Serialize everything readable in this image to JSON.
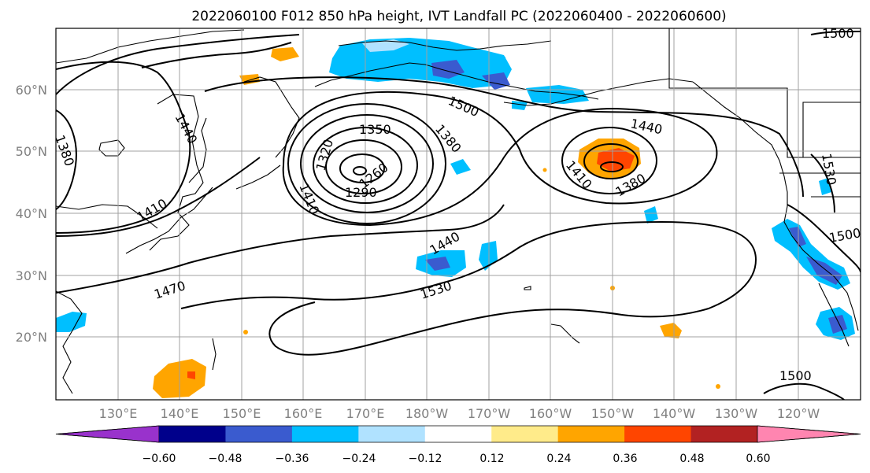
{
  "title": "2022060100 F012 850 hPa height, IVT Landfall PC (2022060400 - 2022060600)",
  "map": {
    "lat_labels": [
      "60°N",
      "50°N",
      "40°N",
      "30°N",
      "20°N"
    ],
    "lon_labels": [
      "130°E",
      "140°E",
      "150°E",
      "160°E",
      "170°E",
      "180°W",
      "170°W",
      "160°W",
      "150°W",
      "140°W",
      "130°W",
      "120°W"
    ],
    "contour_labels": [
      {
        "text": "1440",
        "name": "contour-label-1440-nw"
      },
      {
        "text": "1380",
        "name": "contour-label-1380-west"
      },
      {
        "text": "1410",
        "name": "contour-label-1410-japan"
      },
      {
        "text": "1470",
        "name": "contour-label-1470"
      },
      {
        "text": "1500",
        "name": "contour-label-1500-aleutian"
      },
      {
        "text": "1350",
        "name": "contour-label-1350"
      },
      {
        "text": "1320",
        "name": "contour-label-1320"
      },
      {
        "text": "1260",
        "name": "contour-label-1260"
      },
      {
        "text": "1290",
        "name": "contour-label-1290"
      },
      {
        "text": "1410",
        "name": "contour-label-1410-low"
      },
      {
        "text": "1380",
        "name": "contour-label-1380-low"
      },
      {
        "text": "1440",
        "name": "contour-label-1440-mid"
      },
      {
        "text": "1530",
        "name": "contour-label-1530-mid"
      },
      {
        "text": "1440",
        "name": "contour-label-1440-gulf"
      },
      {
        "text": "1410",
        "name": "contour-label-1410-gulf"
      },
      {
        "text": "1380",
        "name": "contour-label-1380-gulf"
      },
      {
        "text": "1530",
        "name": "contour-label-1530-east"
      },
      {
        "text": "1500",
        "name": "contour-label-1500-east"
      },
      {
        "text": "1500",
        "name": "contour-label-1500-south"
      },
      {
        "text": "1500",
        "name": "contour-label-1500-corner"
      }
    ]
  },
  "colorbar": {
    "ticks": [
      "−0.60",
      "−0.48",
      "−0.36",
      "−0.24",
      "−0.12",
      "0.12",
      "0.24",
      "0.36",
      "0.48",
      "0.60"
    ],
    "colors": [
      "#9932cc",
      "#00008b",
      "#3a5bcf",
      "#00bfff",
      "#b0e2ff",
      "#ffffff",
      "#ffeb8a",
      "#ffa500",
      "#ff4500",
      "#b22222",
      "#ff85b0"
    ]
  }
}
